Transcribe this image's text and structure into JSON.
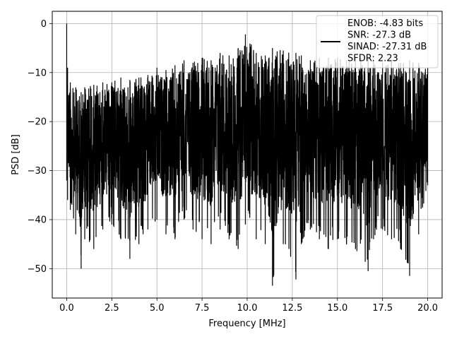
{
  "chart_data": {
    "type": "line",
    "title": "",
    "xlabel": "Frequency [MHz]",
    "ylabel": "PSD [dB]",
    "xlim": [
      -0.8,
      20.8
    ],
    "ylim": [
      -56.0,
      2.5
    ],
    "xticks": [
      0.0,
      2.5,
      5.0,
      7.5,
      10.0,
      12.5,
      15.0,
      17.5,
      20.0
    ],
    "xtick_labels": [
      "0.0",
      "2.5",
      "5.0",
      "7.5",
      "10.0",
      "12.5",
      "15.0",
      "17.5",
      "20.0"
    ],
    "yticks": [
      0,
      -10,
      -20,
      -30,
      -40,
      -50
    ],
    "ytick_labels": [
      "0",
      "−10",
      "−20",
      "−30",
      "−40",
      "−50"
    ],
    "grid": true,
    "legend_position": "top-right",
    "legend_lines": [
      "ENOB: -4.83 bits",
      "SNR: -27.3 dB",
      "SINAD: -27.31 dB",
      "SFDR: 2.23"
    ],
    "series": [
      {
        "color": "#000000",
        "x": [
          0.0,
          0.05,
          0.2,
          0.5,
          0.8,
          1.0,
          1.5,
          2.0,
          2.5,
          3.0,
          3.5,
          4.0,
          4.5,
          5.0,
          5.5,
          6.0,
          6.5,
          7.0,
          7.5,
          8.0,
          8.5,
          9.0,
          9.5,
          9.9,
          10.5,
          11.0,
          11.4,
          12.0,
          12.7,
          13.0,
          13.5,
          14.0,
          14.5,
          15.0,
          15.5,
          16.0,
          16.7,
          17.0,
          17.5,
          18.0,
          18.5,
          19.0,
          19.5,
          20.0
        ],
        "upper": [
          0.0,
          -9.0,
          -12.0,
          -13.0,
          -14.0,
          -13.0,
          -12.5,
          -12.0,
          -12.0,
          -11.0,
          -11.5,
          -11.0,
          -10.5,
          -9.0,
          -9.5,
          -8.5,
          -7.5,
          -8.0,
          -7.0,
          -7.5,
          -6.0,
          -6.5,
          -5.0,
          -2.2,
          -6.0,
          -6.5,
          -5.0,
          -5.5,
          -6.0,
          -6.5,
          -7.5,
          -7.0,
          -7.0,
          -7.0,
          -7.5,
          -7.0,
          -7.0,
          -7.5,
          -8.0,
          -7.5,
          -8.0,
          -7.5,
          -8.0,
          -9.0
        ],
        "lower": [
          -32.0,
          -36.0,
          -38.0,
          -43.0,
          -50.0,
          -44.0,
          -46.0,
          -42.0,
          -41.0,
          -44.0,
          -48.0,
          -45.0,
          -42.0,
          -40.0,
          -43.0,
          -44.0,
          -40.0,
          -42.0,
          -44.0,
          -45.0,
          -42.0,
          -44.0,
          -46.0,
          -41.0,
          -44.0,
          -45.0,
          -53.5,
          -45.0,
          -52.2,
          -45.0,
          -42.0,
          -44.0,
          -46.0,
          -44.0,
          -45.0,
          -46.0,
          -50.5,
          -44.0,
          -42.0,
          -44.0,
          -46.0,
          -51.5,
          -43.0,
          -33.0
        ]
      }
    ]
  }
}
